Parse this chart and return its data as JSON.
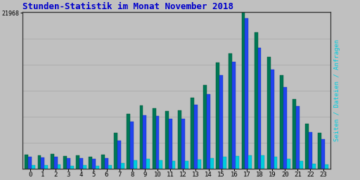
{
  "title": "Stunden-Statistik im Monat November 2018",
  "title_color": "#0000CC",
  "title_fontsize": 9,
  "ymax": 21968,
  "ytick_label": "21968",
  "background_color": "#C0C0C0",
  "grid_color": "#AAAAAA",
  "seiten": [
    1700,
    1550,
    1700,
    1500,
    1500,
    1400,
    1500,
    4000,
    6600,
    7500,
    7400,
    7000,
    7000,
    9000,
    10500,
    13200,
    15000,
    21200,
    17000,
    14000,
    11500,
    8800,
    5200,
    4200
  ],
  "dateien": [
    2000,
    1900,
    2100,
    1800,
    1850,
    1700,
    1950,
    5100,
    7700,
    8900,
    8500,
    8100,
    8200,
    10000,
    11800,
    14900,
    16200,
    21968,
    19200,
    15700,
    13200,
    9800,
    6300,
    5100
  ],
  "anfragen": [
    480,
    520,
    580,
    420,
    460,
    380,
    480,
    750,
    1150,
    1350,
    1150,
    1050,
    1050,
    1250,
    1450,
    1650,
    1750,
    1850,
    1850,
    1650,
    1350,
    1050,
    680,
    620
  ],
  "color_seiten": "#2244EE",
  "color_dateien": "#007755",
  "color_anfragen": "#00CCDD",
  "xlabel_labels": [
    "0",
    "1",
    "2",
    "3",
    "4",
    "5",
    "6",
    "7",
    "8",
    "9",
    "10",
    "11",
    "12",
    "13",
    "14",
    "15",
    "16",
    "17",
    "18",
    "19",
    "20",
    "21",
    "22",
    "23"
  ],
  "ylabel_right": "Seiten / Dateien / Anfragen",
  "ylabel_color": "#00CCDD"
}
